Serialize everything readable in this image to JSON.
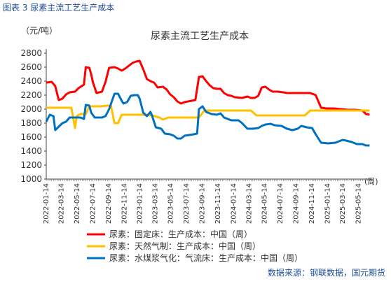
{
  "figure_caption": "图表 3 尿素主流工艺生产成本",
  "source_note": "数据来源：钢联数据，国元期货",
  "chart_data": {
    "type": "line",
    "title": "尿素主流工艺生产成本",
    "ylabel": "（元/吨）",
    "xlabel": "(周)",
    "ylim": [
      1000,
      2800
    ],
    "yticks": [
      1000,
      1200,
      1400,
      1600,
      1800,
      2000,
      2200,
      2400,
      2600,
      2800
    ],
    "xlim": [
      "2022-01-14",
      "2025-07-04"
    ],
    "xtick_labels": [
      "2022-01-14",
      "2022-03-14",
      "2022-05-14",
      "2022-07-14",
      "2022-09-14",
      "2022-11-14",
      "2023-01-14",
      "2023-03-14",
      "2023-05-14",
      "2023-07-14",
      "2023-09-14",
      "2023-11-14",
      "2024-01-14",
      "2024-03-14",
      "2024-05-14",
      "2024-07-14",
      "2024-09-14",
      "2024-11-14",
      "2025-01-14",
      "2025-03-14",
      "2025-05-14"
    ],
    "grid": false,
    "legend_position": "bottom-left",
    "series": [
      {
        "name": "尿素：固定床：生产成本：中国（周）",
        "color": "#ff0000",
        "points": [
          [
            "2022-01-14",
            2380
          ],
          [
            "2022-02-04",
            2390
          ],
          [
            "2022-02-18",
            2330
          ],
          [
            "2022-03-04",
            2130
          ],
          [
            "2022-03-18",
            2150
          ],
          [
            "2022-04-01",
            2210
          ],
          [
            "2022-04-15",
            2240
          ],
          [
            "2022-05-06",
            2250
          ],
          [
            "2022-05-20",
            2300
          ],
          [
            "2022-06-10",
            2350
          ],
          [
            "2022-06-17",
            2600
          ],
          [
            "2022-07-01",
            2590
          ],
          [
            "2022-07-08",
            2500
          ],
          [
            "2022-07-15",
            2380
          ],
          [
            "2022-07-29",
            2230
          ],
          [
            "2022-08-19",
            2250
          ],
          [
            "2022-09-02",
            2390
          ],
          [
            "2022-09-16",
            2590
          ],
          [
            "2022-10-07",
            2600
          ],
          [
            "2022-10-21",
            2580
          ],
          [
            "2022-11-04",
            2550
          ],
          [
            "2022-11-18",
            2580
          ],
          [
            "2022-12-02",
            2620
          ],
          [
            "2022-12-16",
            2660
          ],
          [
            "2022-12-30",
            2680
          ],
          [
            "2023-01-13",
            2690
          ],
          [
            "2023-01-27",
            2570
          ],
          [
            "2023-02-10",
            2430
          ],
          [
            "2023-02-24",
            2400
          ],
          [
            "2023-03-10",
            2380
          ],
          [
            "2023-03-24",
            2310
          ],
          [
            "2023-04-14",
            2320
          ],
          [
            "2023-04-28",
            2280
          ],
          [
            "2023-05-12",
            2210
          ],
          [
            "2023-05-26",
            2170
          ],
          [
            "2023-06-09",
            2110
          ],
          [
            "2023-06-23",
            2080
          ],
          [
            "2023-07-07",
            2100
          ],
          [
            "2023-07-21",
            2110
          ],
          [
            "2023-08-04",
            2120
          ],
          [
            "2023-08-18",
            2130
          ],
          [
            "2023-09-01",
            2460
          ],
          [
            "2023-09-15",
            2470
          ],
          [
            "2023-09-29",
            2400
          ],
          [
            "2023-10-13",
            2340
          ],
          [
            "2023-10-27",
            2300
          ],
          [
            "2023-11-10",
            2290
          ],
          [
            "2023-11-24",
            2290
          ],
          [
            "2023-12-08",
            2230
          ],
          [
            "2023-12-22",
            2200
          ],
          [
            "2024-01-05",
            2190
          ],
          [
            "2024-01-19",
            2170
          ],
          [
            "2024-02-16",
            2160
          ],
          [
            "2024-03-08",
            2180
          ],
          [
            "2024-03-22",
            2160
          ],
          [
            "2024-04-05",
            2160
          ],
          [
            "2024-04-19",
            2190
          ],
          [
            "2024-05-03",
            2310
          ],
          [
            "2024-05-17",
            2320
          ],
          [
            "2024-05-31",
            2280
          ],
          [
            "2024-06-14",
            2250
          ],
          [
            "2024-07-05",
            2250
          ],
          [
            "2024-07-26",
            2240
          ],
          [
            "2024-08-09",
            2230
          ],
          [
            "2024-09-06",
            2230
          ],
          [
            "2024-10-04",
            2230
          ],
          [
            "2024-11-08",
            2230
          ],
          [
            "2024-11-29",
            2200
          ],
          [
            "2024-12-20",
            2020
          ],
          [
            "2025-01-10",
            2010
          ],
          [
            "2025-02-07",
            2010
          ],
          [
            "2025-03-07",
            2000
          ],
          [
            "2025-04-04",
            1990
          ],
          [
            "2025-05-02",
            1990
          ],
          [
            "2025-05-30",
            1980
          ],
          [
            "2025-06-13",
            1930
          ],
          [
            "2025-06-27",
            1920
          ]
        ]
      },
      {
        "name": "尿素：天然气制：生产成本：中国（周）",
        "color": "#ffc000",
        "points": [
          [
            "2022-01-14",
            2020
          ],
          [
            "2022-02-25",
            2020
          ],
          [
            "2022-03-25",
            2020
          ],
          [
            "2022-04-22",
            2020
          ],
          [
            "2022-05-06",
            1730
          ],
          [
            "2022-05-13",
            1900
          ],
          [
            "2022-05-27",
            1930
          ],
          [
            "2022-06-17",
            1930
          ],
          [
            "2022-07-01",
            2040
          ],
          [
            "2022-08-12",
            2040
          ],
          [
            "2022-09-09",
            2050
          ],
          [
            "2022-09-23",
            2050
          ],
          [
            "2022-10-07",
            1800
          ],
          [
            "2022-10-21",
            1800
          ],
          [
            "2022-11-04",
            1920
          ],
          [
            "2022-12-16",
            1920
          ],
          [
            "2023-01-27",
            1920
          ],
          [
            "2023-03-03",
            1910
          ],
          [
            "2023-03-31",
            1880
          ],
          [
            "2023-04-14",
            1850
          ],
          [
            "2023-05-05",
            1880
          ],
          [
            "2023-06-16",
            1880
          ],
          [
            "2023-08-11",
            1880
          ],
          [
            "2023-09-01",
            1880
          ],
          [
            "2023-09-22",
            1980
          ],
          [
            "2023-11-03",
            1980
          ],
          [
            "2023-12-22",
            1980
          ],
          [
            "2024-02-02",
            1980
          ],
          [
            "2024-03-22",
            1980
          ],
          [
            "2024-04-12",
            1910
          ],
          [
            "2024-05-24",
            1910
          ],
          [
            "2024-07-19",
            1910
          ],
          [
            "2024-09-13",
            1910
          ],
          [
            "2024-10-18",
            1910
          ],
          [
            "2024-11-08",
            1980
          ],
          [
            "2024-12-20",
            1980
          ],
          [
            "2025-02-07",
            1980
          ],
          [
            "2025-04-04",
            1980
          ],
          [
            "2025-05-30",
            1980
          ],
          [
            "2025-06-27",
            1980
          ]
        ]
      },
      {
        "name": "尿素：水煤浆气化：气流床：生产成本：中国（周）",
        "color": "#0070c0",
        "points": [
          [
            "2022-01-14",
            1820
          ],
          [
            "2022-01-28",
            1920
          ],
          [
            "2022-02-11",
            1900
          ],
          [
            "2022-02-18",
            1700
          ],
          [
            "2022-03-04",
            1750
          ],
          [
            "2022-03-18",
            1800
          ],
          [
            "2022-04-01",
            1820
          ],
          [
            "2022-04-15",
            1880
          ],
          [
            "2022-05-06",
            1880
          ],
          [
            "2022-05-27",
            1880
          ],
          [
            "2022-06-10",
            1860
          ],
          [
            "2022-06-17",
            2060
          ],
          [
            "2022-07-01",
            2050
          ],
          [
            "2022-07-08",
            1950
          ],
          [
            "2022-07-22",
            1880
          ],
          [
            "2022-08-19",
            1880
          ],
          [
            "2022-09-02",
            1900
          ],
          [
            "2022-09-16",
            2000
          ],
          [
            "2022-10-07",
            2220
          ],
          [
            "2022-10-21",
            2220
          ],
          [
            "2022-11-04",
            2120
          ],
          [
            "2022-11-11",
            2080
          ],
          [
            "2022-11-25",
            2100
          ],
          [
            "2022-12-09",
            2190
          ],
          [
            "2022-12-23",
            2200
          ],
          [
            "2023-01-06",
            2200
          ],
          [
            "2023-01-13",
            2150
          ],
          [
            "2023-01-27",
            1950
          ],
          [
            "2023-02-10",
            1900
          ],
          [
            "2023-02-24",
            1960
          ],
          [
            "2023-03-03",
            1900
          ],
          [
            "2023-03-17",
            1740
          ],
          [
            "2023-04-07",
            1720
          ],
          [
            "2023-04-21",
            1650
          ],
          [
            "2023-05-12",
            1640
          ],
          [
            "2023-05-26",
            1620
          ],
          [
            "2023-06-09",
            1580
          ],
          [
            "2023-06-23",
            1580
          ],
          [
            "2023-07-07",
            1620
          ],
          [
            "2023-08-11",
            1640
          ],
          [
            "2023-08-25",
            1650
          ],
          [
            "2023-09-01",
            2000
          ],
          [
            "2023-09-15",
            2040
          ],
          [
            "2023-09-29",
            1960
          ],
          [
            "2023-10-20",
            1930
          ],
          [
            "2023-11-10",
            1920
          ],
          [
            "2023-11-24",
            1940
          ],
          [
            "2023-12-08",
            1880
          ],
          [
            "2023-12-22",
            1860
          ],
          [
            "2024-01-05",
            1840
          ],
          [
            "2024-02-02",
            1840
          ],
          [
            "2024-02-16",
            1800
          ],
          [
            "2024-03-08",
            1720
          ],
          [
            "2024-03-29",
            1720
          ],
          [
            "2024-04-19",
            1730
          ],
          [
            "2024-05-03",
            1760
          ],
          [
            "2024-05-17",
            1780
          ],
          [
            "2024-06-07",
            1790
          ],
          [
            "2024-06-21",
            1770
          ],
          [
            "2024-07-19",
            1760
          ],
          [
            "2024-08-09",
            1720
          ],
          [
            "2024-08-30",
            1700
          ],
          [
            "2024-09-20",
            1720
          ],
          [
            "2024-10-04",
            1760
          ],
          [
            "2024-10-25",
            1740
          ],
          [
            "2024-11-15",
            1730
          ],
          [
            "2024-11-29",
            1640
          ],
          [
            "2024-12-20",
            1520
          ],
          [
            "2025-01-17",
            1510
          ],
          [
            "2025-02-14",
            1520
          ],
          [
            "2025-03-14",
            1560
          ],
          [
            "2025-03-28",
            1550
          ],
          [
            "2025-04-18",
            1530
          ],
          [
            "2025-05-09",
            1500
          ],
          [
            "2025-05-30",
            1500
          ],
          [
            "2025-06-13",
            1480
          ],
          [
            "2025-06-27",
            1480
          ]
        ]
      }
    ]
  }
}
